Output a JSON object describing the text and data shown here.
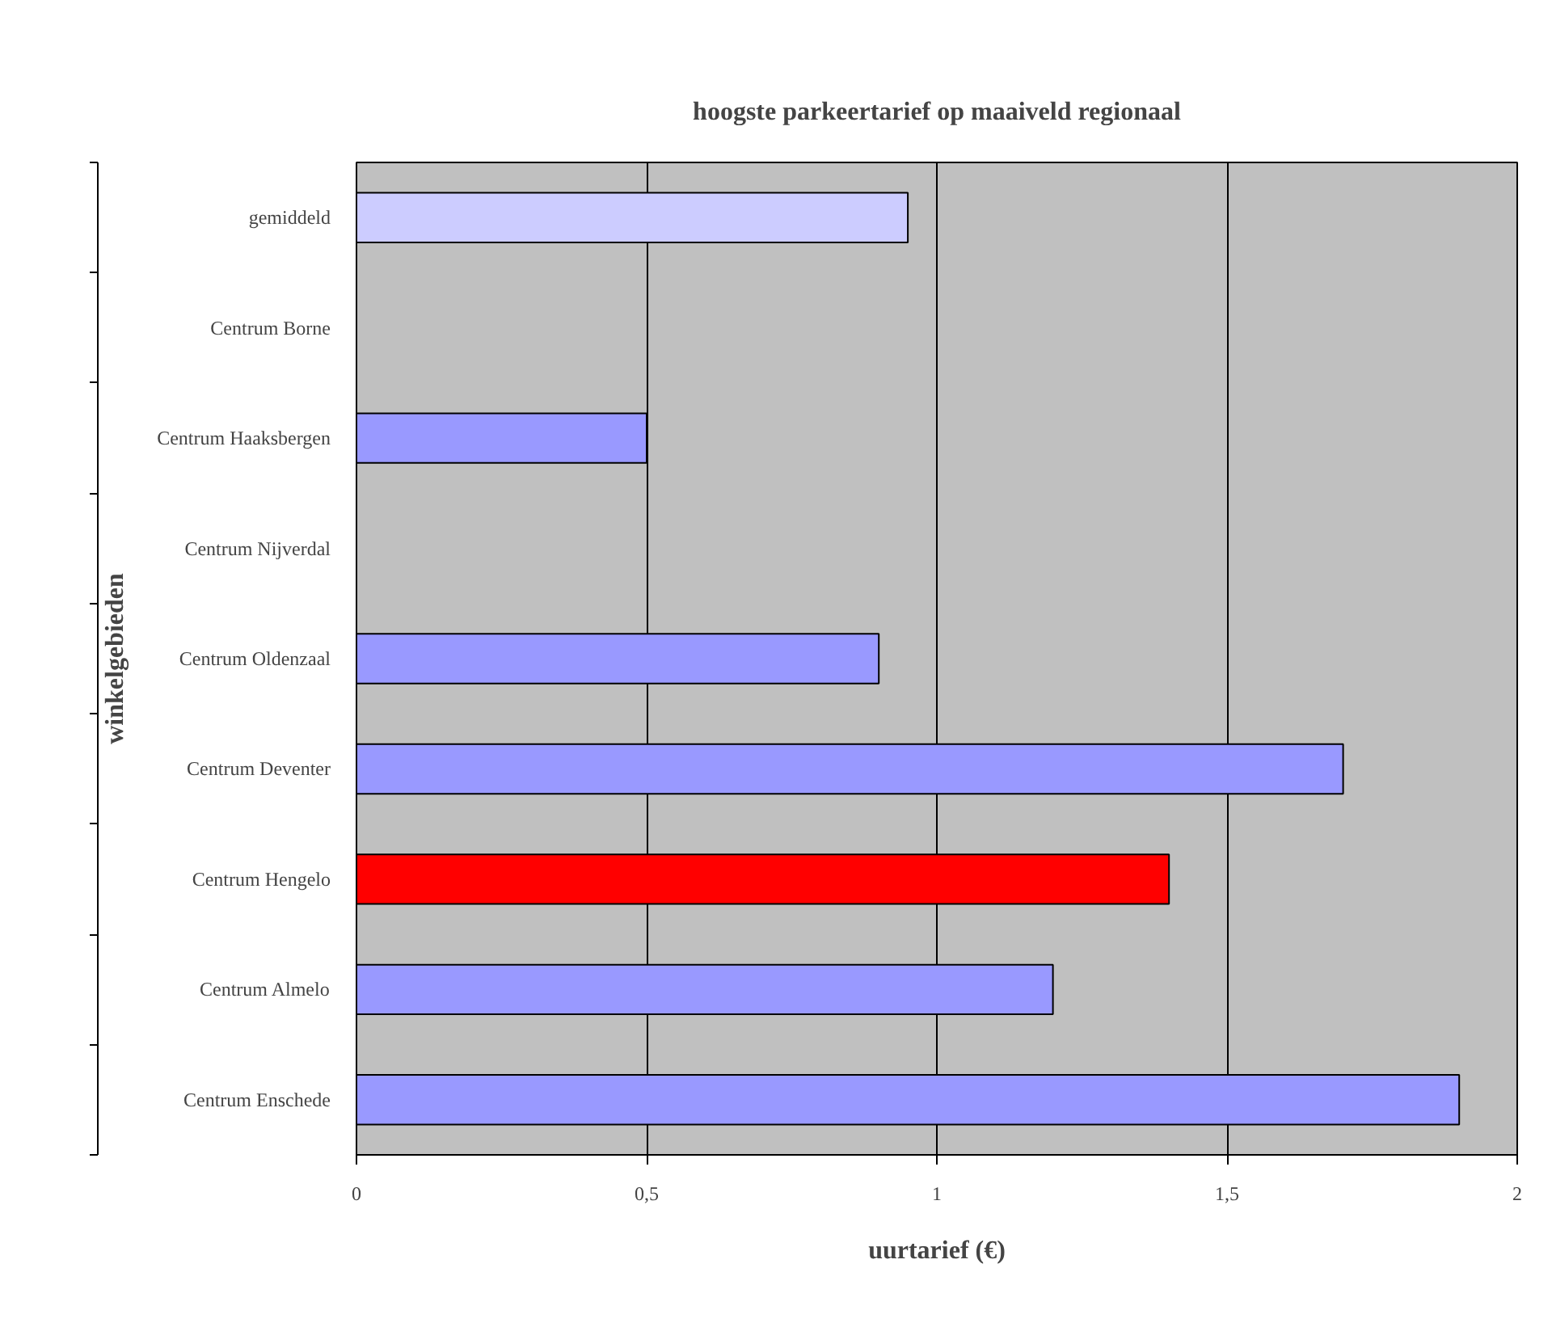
{
  "chart_data": {
    "type": "bar",
    "orientation": "horizontal",
    "title": "hoogste parkeertarief op maaiveld regionaal",
    "xlabel": "uurtarief (€)",
    "ylabel": "winkelgebieden",
    "categories": [
      "gemiddeld",
      "Centrum Borne",
      "Centrum Haaksbergen",
      "Centrum Nijverdal",
      "Centrum Oldenzaal",
      "Centrum Deventer",
      "Centrum Hengelo",
      "Centrum Almelo",
      "Centrum Enschede"
    ],
    "values": [
      0.95,
      null,
      0.5,
      null,
      0.9,
      1.7,
      1.4,
      1.2,
      1.9
    ],
    "colors": [
      "#ccccff",
      "#9999ff",
      "#9999ff",
      "#9999ff",
      "#9999ff",
      "#9999ff",
      "#ff0000",
      "#9999ff",
      "#9999ff"
    ],
    "xlim": [
      0,
      2
    ],
    "xticks": [
      0,
      {
        "value": 0.5,
        "label": "0,5"
      },
      1,
      {
        "value": 1.5,
        "label": "1,5"
      },
      2
    ],
    "grid": "x"
  }
}
